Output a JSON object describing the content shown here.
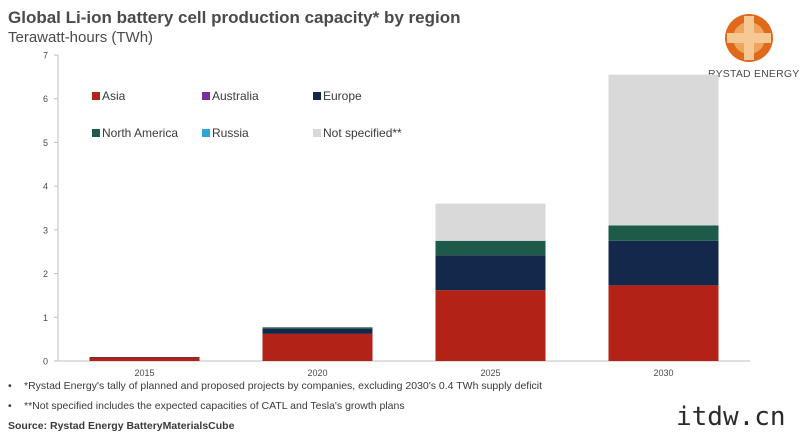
{
  "header": {
    "title": "Global Li-ion battery cell production capacity* by region",
    "subtitle": "Terawatt-hours (TWh)"
  },
  "logo": {
    "text": "RYSTAD ENERGY",
    "colors": [
      "#e06a1b",
      "#f0a55e",
      "#f6c894"
    ]
  },
  "chart_data": {
    "type": "bar",
    "stacked": true,
    "categories": [
      "2015",
      "2020",
      "2025",
      "2030"
    ],
    "yticks": [
      "0",
      "1",
      "2",
      "3",
      "4",
      "5",
      "6",
      "7"
    ],
    "ylim": [
      0,
      7
    ],
    "grid": false,
    "legend_position": "top-left",
    "series": [
      {
        "name": "Asia",
        "color": "#b32217",
        "values": [
          0.08,
          0.62,
          1.62,
          1.73
        ]
      },
      {
        "name": "Australia",
        "color": "#7b2f9e",
        "values": [
          0,
          0,
          0,
          0
        ]
      },
      {
        "name": "Europe",
        "color": "#14284b",
        "values": [
          0.01,
          0.12,
          0.8,
          1.02
        ]
      },
      {
        "name": "North America",
        "color": "#1e5a4a",
        "values": [
          0,
          0.03,
          0.33,
          0.35
        ]
      },
      {
        "name": "Russia",
        "color": "#2aa6d9",
        "values": [
          0,
          0,
          0,
          0
        ]
      },
      {
        "name": "Not specified**",
        "color": "#d9d9d9",
        "values": [
          0,
          0,
          0.85,
          3.45
        ]
      }
    ]
  },
  "notes": [
    "*Rystad Energy's tally of planned and proposed projects by companies, excluding 2030's 0.4 TWh supply deficit",
    "**Not specified includes the expected capacities of CATL and Tesla's growth plans"
  ],
  "note_bullet": "•",
  "source": "Source: Rystad Energy BatteryMaterialsCube",
  "watermark": "itdw.cn"
}
